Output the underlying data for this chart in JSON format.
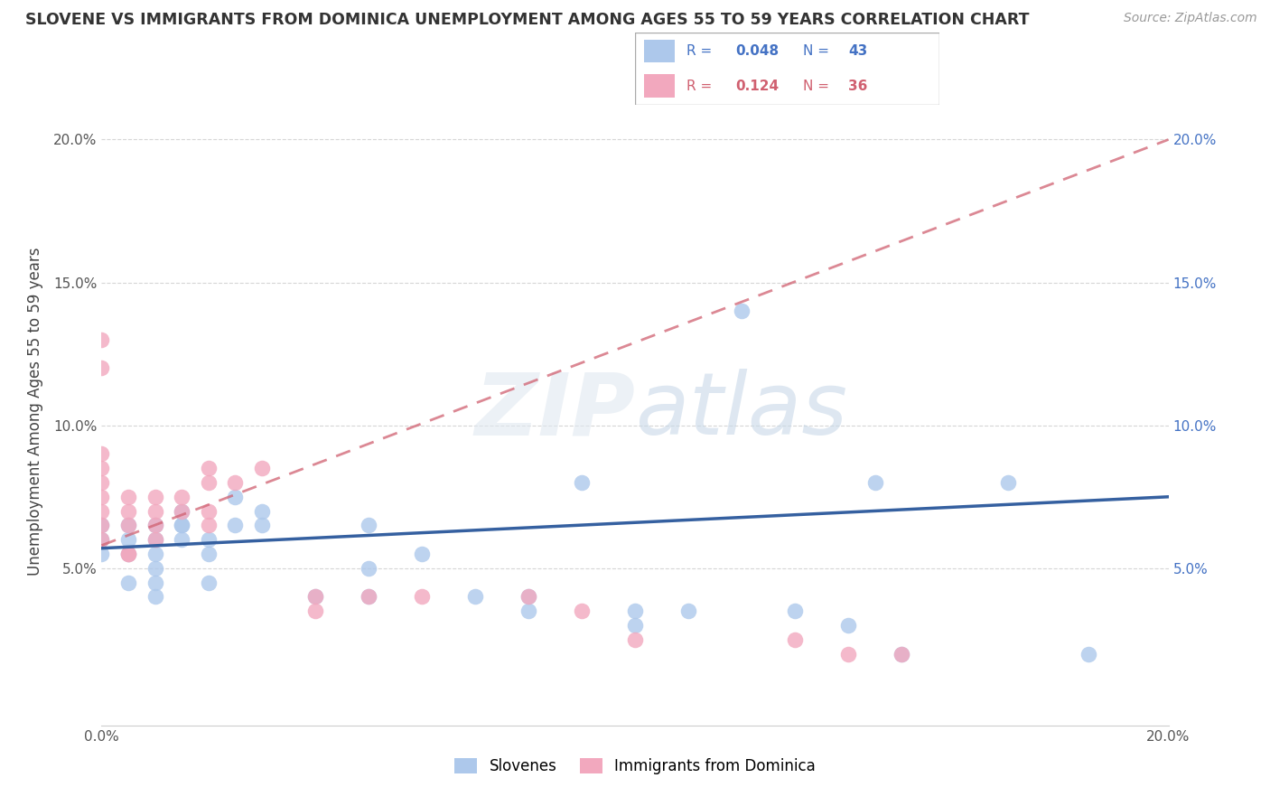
{
  "title": "SLOVENE VS IMMIGRANTS FROM DOMINICA UNEMPLOYMENT AMONG AGES 55 TO 59 YEARS CORRELATION CHART",
  "source": "Source: ZipAtlas.com",
  "xlabel": "",
  "ylabel": "Unemployment Among Ages 55 to 59 years",
  "xlim": [
    0.0,
    0.2
  ],
  "ylim": [
    -0.005,
    0.215
  ],
  "xticks": [
    0.0,
    0.05,
    0.1,
    0.15,
    0.2
  ],
  "xticklabels": [
    "0.0%",
    "",
    "",
    "",
    "20.0%"
  ],
  "yticks": [
    0.05,
    0.1,
    0.15,
    0.2
  ],
  "yticklabels": [
    "5.0%",
    "10.0%",
    "15.0%",
    "20.0%"
  ],
  "right_yticklabels": [
    "5.0%",
    "10.0%",
    "15.0%",
    "20.0%"
  ],
  "slovene_color": "#adc8eb",
  "dominica_color": "#f2a8be",
  "slovene_R": 0.048,
  "slovene_N": 43,
  "dominica_R": 0.124,
  "dominica_N": 36,
  "slovene_line_color": "#3560a0",
  "dominica_line_color": "#d06070",
  "watermark": "ZIPatlas",
  "legend_label_slovene": "Slovenes",
  "legend_label_dominica": "Immigrants from Dominica",
  "slovene_x": [
    0.0,
    0.0,
    0.0,
    0.005,
    0.005,
    0.005,
    0.005,
    0.01,
    0.01,
    0.01,
    0.01,
    0.01,
    0.01,
    0.015,
    0.015,
    0.015,
    0.015,
    0.02,
    0.02,
    0.02,
    0.025,
    0.025,
    0.03,
    0.03,
    0.04,
    0.05,
    0.05,
    0.05,
    0.06,
    0.07,
    0.08,
    0.08,
    0.09,
    0.1,
    0.1,
    0.11,
    0.12,
    0.13,
    0.14,
    0.145,
    0.15,
    0.17,
    0.185
  ],
  "slovene_y": [
    0.055,
    0.06,
    0.065,
    0.06,
    0.065,
    0.055,
    0.045,
    0.06,
    0.065,
    0.055,
    0.05,
    0.045,
    0.04,
    0.065,
    0.07,
    0.065,
    0.06,
    0.06,
    0.055,
    0.045,
    0.075,
    0.065,
    0.07,
    0.065,
    0.04,
    0.065,
    0.05,
    0.04,
    0.055,
    0.04,
    0.04,
    0.035,
    0.08,
    0.035,
    0.03,
    0.035,
    0.14,
    0.035,
    0.03,
    0.08,
    0.02,
    0.08,
    0.02
  ],
  "dominica_x": [
    0.0,
    0.0,
    0.0,
    0.0,
    0.0,
    0.0,
    0.0,
    0.0,
    0.0,
    0.005,
    0.005,
    0.005,
    0.005,
    0.005,
    0.01,
    0.01,
    0.01,
    0.01,
    0.015,
    0.015,
    0.02,
    0.02,
    0.02,
    0.02,
    0.025,
    0.03,
    0.04,
    0.04,
    0.05,
    0.06,
    0.08,
    0.09,
    0.1,
    0.13,
    0.14,
    0.15
  ],
  "dominica_y": [
    0.06,
    0.065,
    0.07,
    0.075,
    0.08,
    0.085,
    0.09,
    0.12,
    0.13,
    0.055,
    0.065,
    0.07,
    0.075,
    0.055,
    0.06,
    0.065,
    0.07,
    0.075,
    0.07,
    0.075,
    0.07,
    0.08,
    0.065,
    0.085,
    0.08,
    0.085,
    0.04,
    0.035,
    0.04,
    0.04,
    0.04,
    0.035,
    0.025,
    0.025,
    0.02,
    0.02
  ],
  "slovene_line_x0": 0.0,
  "slovene_line_x1": 0.2,
  "slovene_line_y0": 0.057,
  "slovene_line_y1": 0.075,
  "dominica_line_x0": 0.0,
  "dominica_line_x1": 0.2,
  "dominica_line_y0": 0.058,
  "dominica_line_y1": 0.2
}
